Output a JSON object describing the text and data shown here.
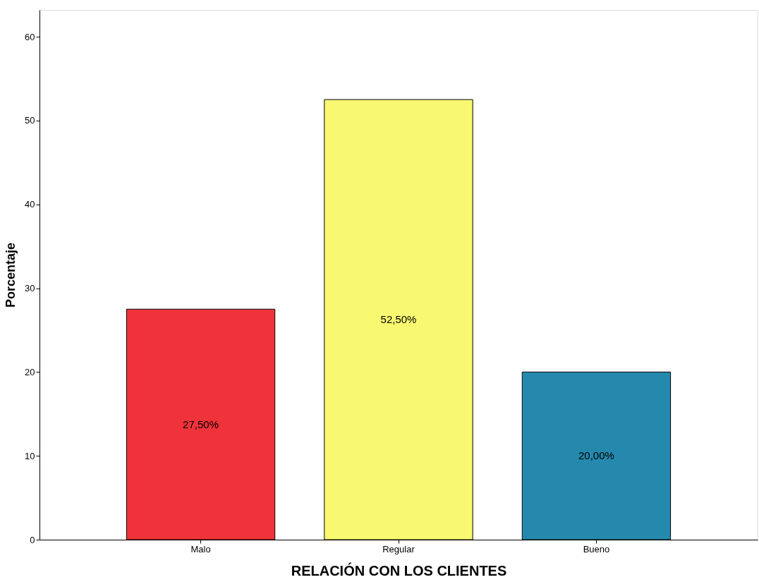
{
  "chart_data": {
    "type": "bar",
    "xlabel": "RELACIÓN CON LOS CLIENTES",
    "ylabel": "Porcentaje",
    "categories": [
      "Malo",
      "Regular",
      "Bueno"
    ],
    "values": [
      27.5,
      52.5,
      20.0
    ],
    "colors": [
      "#f0323a",
      "#f9f871",
      "#2489ad"
    ],
    "value_labels": [
      "27,50%",
      "52,50%",
      "20,00%"
    ],
    "ylim": [
      0,
      63.2
    ],
    "yticks": [
      0,
      10,
      20,
      30,
      40,
      50,
      60
    ],
    "grid": false,
    "legend": false
  }
}
